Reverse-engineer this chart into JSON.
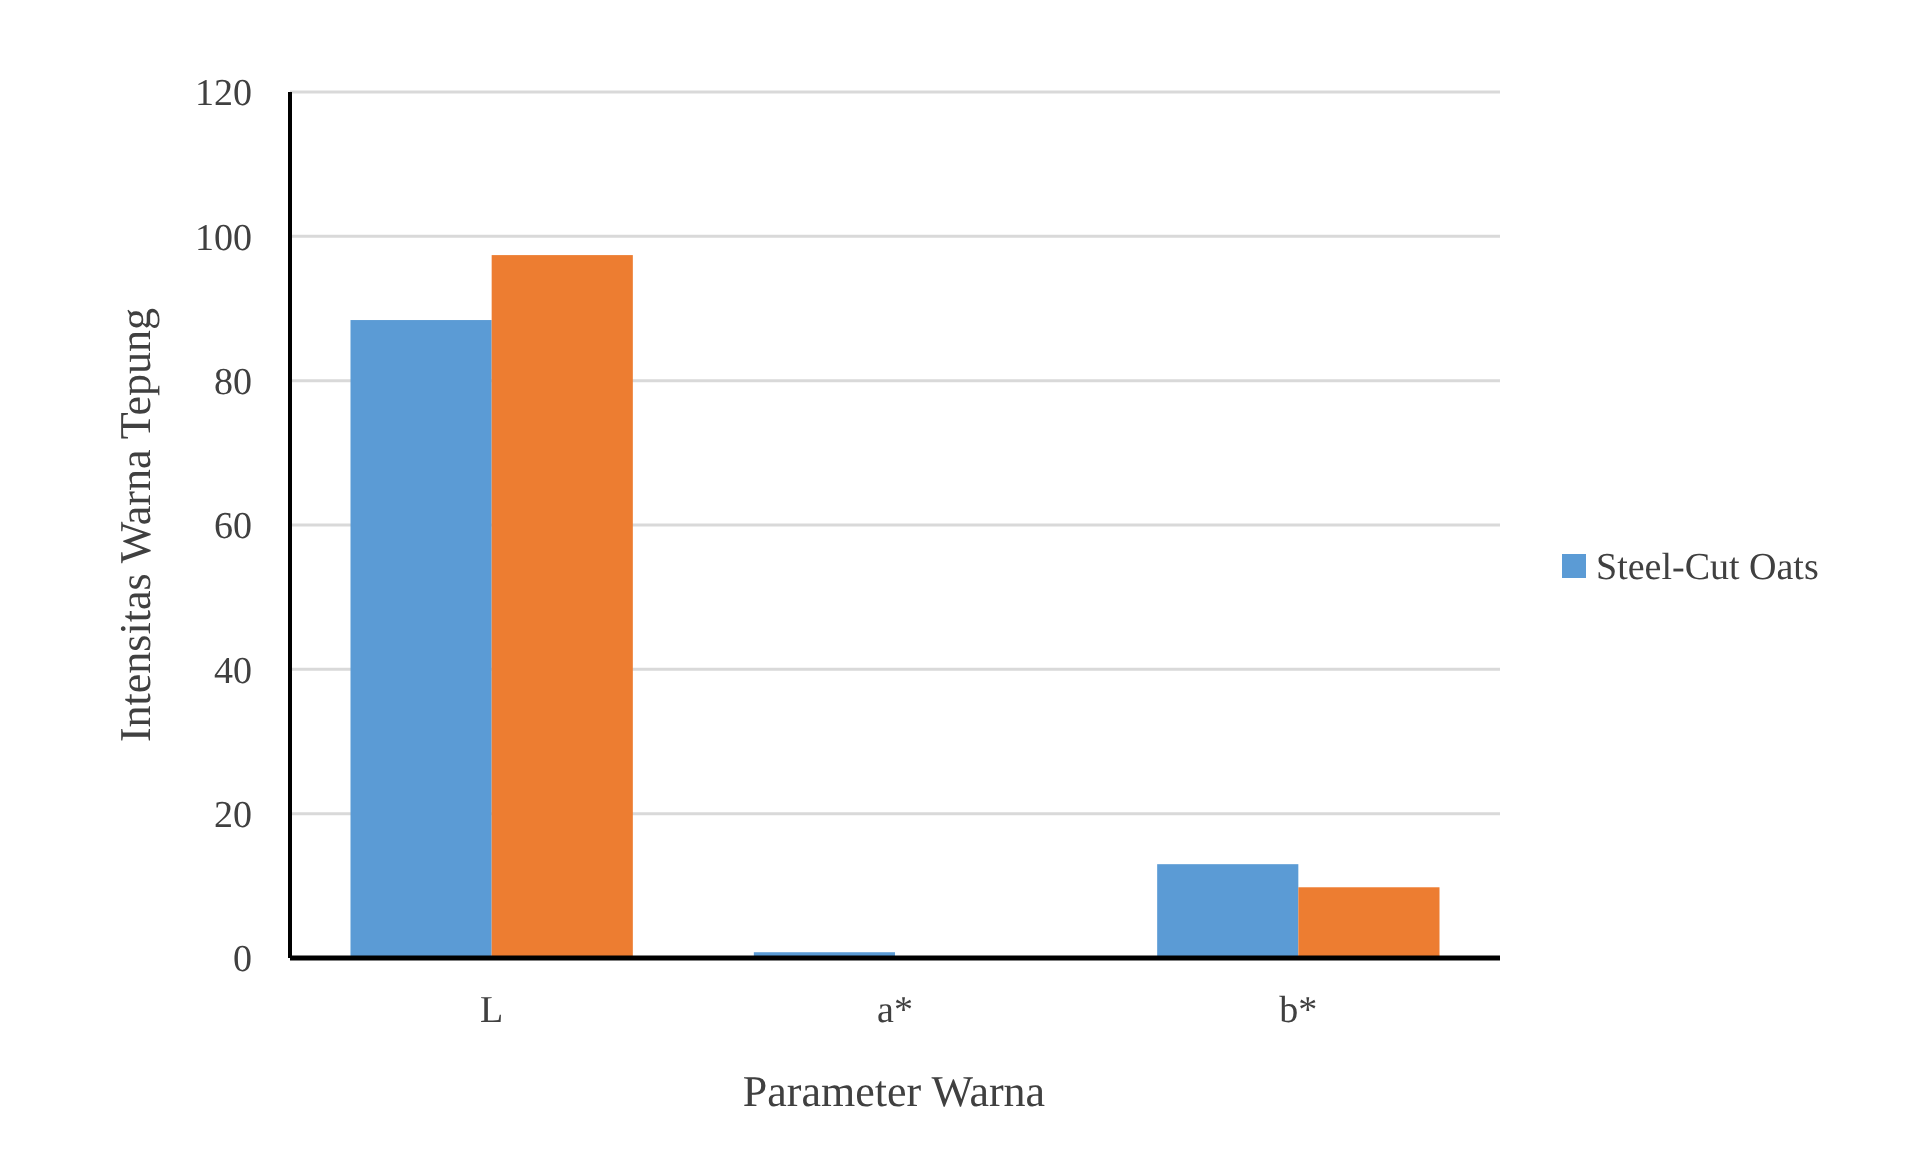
{
  "chart_data": {
    "type": "bar",
    "xlabel": "Parameter Warna",
    "ylabel": "Intensitas Warna Tepung",
    "categories": [
      "L",
      "a*",
      "b*"
    ],
    "series": [
      {
        "name": "Steel-Cut Oats",
        "color": "#5b9bd5",
        "values": [
          88.4,
          0.8,
          13.0
        ]
      },
      {
        "color": "#ed7d31",
        "values": [
          97.4,
          0,
          9.8
        ]
      }
    ],
    "ylim": [
      0,
      120
    ],
    "yticks": [
      0,
      20,
      40,
      60,
      80,
      100,
      120
    ],
    "grid": "y",
    "legend": "right"
  }
}
